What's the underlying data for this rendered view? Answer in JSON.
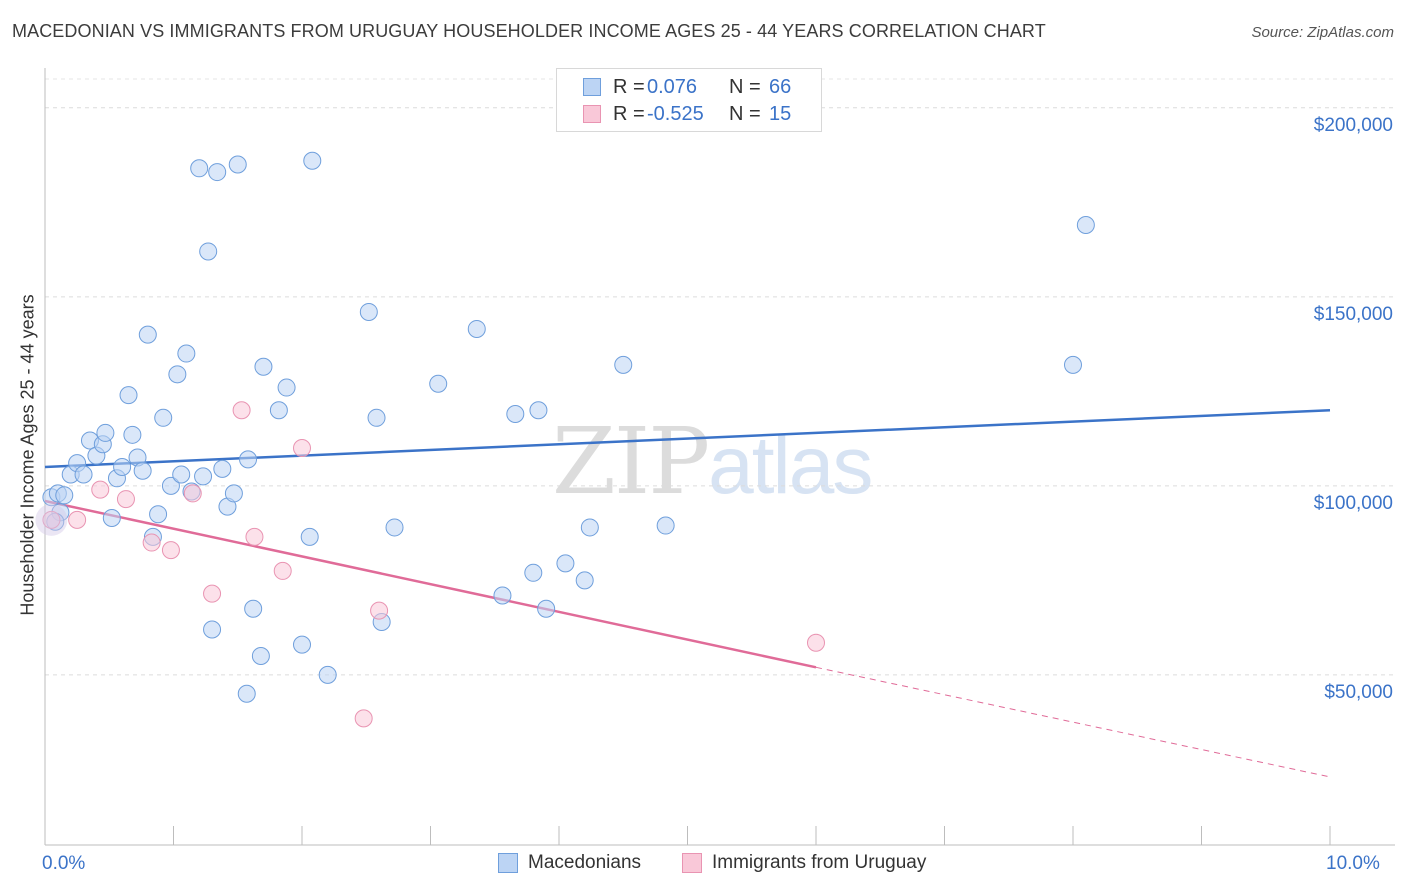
{
  "title": "MACEDONIAN VS IMMIGRANTS FROM URUGUAY HOUSEHOLDER INCOME AGES 25 - 44 YEARS CORRELATION CHART",
  "source": "Source: ZipAtlas.com",
  "watermark": {
    "zip": "ZIP",
    "atlas": "atlas"
  },
  "legend": {
    "r_label": "R =",
    "n_label": "N =",
    "rows": [
      {
        "r": "0.076",
        "n": "66",
        "fill": "#bcd4f4",
        "stroke": "#6f9fdc"
      },
      {
        "r": "-0.525",
        "n": "15",
        "fill": "#f9c8d8",
        "stroke": "#e994b2"
      }
    ]
  },
  "bottom_legend": {
    "series1": "Macedonians",
    "series2": "Immigrants from Uruguay"
  },
  "chart_data": {
    "type": "scatter",
    "title": "MACEDONIAN VS IMMIGRANTS FROM URUGUAY HOUSEHOLDER INCOME AGES 25 - 44 YEARS CORRELATION CHART",
    "xlabel": "",
    "ylabel": "Householder Income Ages 25 - 44 years",
    "xlim": [
      0,
      10
    ],
    "ylim": [
      5000,
      210000
    ],
    "x_tick_labels": [
      "0.0%",
      "10.0%"
    ],
    "y_ticks": [
      50000,
      100000,
      150000,
      200000
    ],
    "y_tick_labels": [
      "$50,000",
      "$100,000",
      "$150,000",
      "$200,000"
    ],
    "grid": true,
    "colors": {
      "series1": "#3b73c8",
      "series2": "#e06b98",
      "axis_text": "#3b73c8"
    },
    "series": [
      {
        "name": "Macedonians",
        "r": 0.076,
        "n": 66,
        "trend": {
          "x0": 0.0,
          "y0": 105000,
          "x1": 10.0,
          "y1": 120000
        },
        "points": [
          [
            0.05,
            97000
          ],
          [
            0.1,
            98000
          ],
          [
            0.15,
            97500
          ],
          [
            0.12,
            93000
          ],
          [
            0.08,
            90500
          ],
          [
            0.2,
            103000
          ],
          [
            0.25,
            106000
          ],
          [
            0.3,
            103000
          ],
          [
            0.35,
            112000
          ],
          [
            0.4,
            108000
          ],
          [
            0.45,
            111000
          ],
          [
            0.47,
            114000
          ],
          [
            0.52,
            91500
          ],
          [
            0.56,
            102000
          ],
          [
            0.6,
            105000
          ],
          [
            0.65,
            124000
          ],
          [
            0.68,
            113500
          ],
          [
            0.72,
            107500
          ],
          [
            0.76,
            104000
          ],
          [
            0.8,
            140000
          ],
          [
            0.84,
            86500
          ],
          [
            0.88,
            92500
          ],
          [
            0.92,
            118000
          ],
          [
            0.98,
            100000
          ],
          [
            1.03,
            129500
          ],
          [
            1.06,
            103000
          ],
          [
            1.1,
            135000
          ],
          [
            1.14,
            98500
          ],
          [
            1.2,
            184000
          ],
          [
            1.23,
            102500
          ],
          [
            1.27,
            162000
          ],
          [
            1.3,
            62000
          ],
          [
            1.34,
            183000
          ],
          [
            1.38,
            104500
          ],
          [
            1.42,
            94500
          ],
          [
            1.47,
            98000
          ],
          [
            1.5,
            185000
          ],
          [
            1.58,
            107000
          ],
          [
            1.62,
            67500
          ],
          [
            1.68,
            55000
          ],
          [
            1.7,
            131500
          ],
          [
            1.57,
            45000
          ],
          [
            1.82,
            120000
          ],
          [
            1.88,
            126000
          ],
          [
            2.0,
            58000
          ],
          [
            2.06,
            86500
          ],
          [
            2.08,
            186000
          ],
          [
            2.2,
            50000
          ],
          [
            2.52,
            146000
          ],
          [
            2.58,
            118000
          ],
          [
            2.62,
            64000
          ],
          [
            2.72,
            89000
          ],
          [
            3.06,
            127000
          ],
          [
            3.36,
            141500
          ],
          [
            3.56,
            71000
          ],
          [
            3.66,
            119000
          ],
          [
            3.8,
            77000
          ],
          [
            3.84,
            120000
          ],
          [
            3.9,
            67500
          ],
          [
            4.05,
            79500
          ],
          [
            4.2,
            75000
          ],
          [
            4.24,
            89000
          ],
          [
            4.5,
            132000
          ],
          [
            4.83,
            89500
          ],
          [
            8.1,
            169000
          ],
          [
            8.0,
            132000
          ]
        ]
      },
      {
        "name": "Immigrants from Uruguay",
        "r": -0.525,
        "n": 15,
        "trend": {
          "x0": 0.0,
          "y0": 96000,
          "x1": 6.0,
          "y1": 52000,
          "dash_to_x": 10.0,
          "dash_to_y": 23000
        },
        "points": [
          [
            0.05,
            91000
          ],
          [
            0.25,
            91000
          ],
          [
            0.43,
            99000
          ],
          [
            0.63,
            96500
          ],
          [
            0.83,
            85000
          ],
          [
            0.98,
            83000
          ],
          [
            1.15,
            98000
          ],
          [
            1.3,
            71500
          ],
          [
            1.53,
            120000
          ],
          [
            1.63,
            86500
          ],
          [
            1.85,
            77500
          ],
          [
            2.0,
            110000
          ],
          [
            2.6,
            67000
          ],
          [
            2.48,
            38500
          ],
          [
            6.0,
            58500
          ]
        ]
      }
    ]
  }
}
